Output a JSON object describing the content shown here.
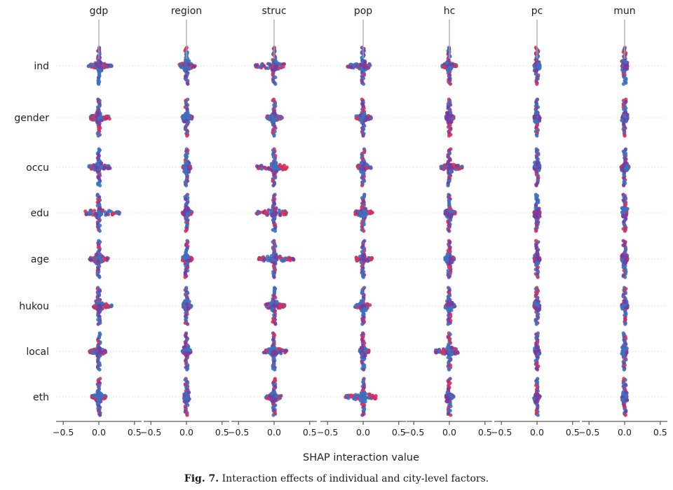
{
  "chart_data": {
    "type": "scatter",
    "subtype": "shap-interaction-summary",
    "columns": [
      "gdp",
      "region",
      "struc",
      "pop",
      "hc",
      "pc",
      "mun"
    ],
    "rows": [
      "ind",
      "gender",
      "occu",
      "edu",
      "age",
      "hukou",
      "local",
      "eth"
    ],
    "xlabel": "SHAP interaction value",
    "xlim": [
      -0.6,
      0.6
    ],
    "xticks": [
      -0.5,
      0.0,
      0.5
    ],
    "xtick_labels": [
      "−0.5",
      "0.0",
      "0.5"
    ],
    "color_low": "#3a72c0",
    "color_high": "#d7315a",
    "color_mid": "#7b3aa0",
    "grid": false,
    "spread": {
      "note": "approximate horizontal extent of interaction values per cell, [min, max]",
      "gdp": {
        "ind": [
          -0.15,
          0.18
        ],
        "gender": [
          -0.12,
          0.16
        ],
        "occu": [
          -0.14,
          0.16
        ],
        "edu": [
          -0.2,
          0.3
        ],
        "age": [
          -0.13,
          0.14
        ],
        "hukou": [
          -0.08,
          0.18
        ],
        "local": [
          -0.13,
          0.1
        ],
        "eth": [
          -0.1,
          0.1
        ]
      },
      "region": {
        "ind": [
          -0.1,
          0.12
        ],
        "gender": [
          -0.06,
          0.08
        ],
        "occu": [
          -0.05,
          0.06
        ],
        "edu": [
          -0.06,
          0.08
        ],
        "age": [
          -0.06,
          0.08
        ],
        "hukou": [
          -0.05,
          0.07
        ],
        "local": [
          -0.06,
          0.06
        ],
        "eth": [
          -0.03,
          0.03
        ]
      },
      "struc": {
        "ind": [
          -0.27,
          0.18
        ],
        "gender": [
          -0.1,
          0.12
        ],
        "occu": [
          -0.25,
          0.18
        ],
        "edu": [
          -0.25,
          0.18
        ],
        "age": [
          -0.22,
          0.28
        ],
        "hukou": [
          -0.12,
          0.15
        ],
        "local": [
          -0.15,
          0.18
        ],
        "eth": [
          -0.12,
          0.1
        ]
      },
      "pop": {
        "ind": [
          -0.22,
          0.1
        ],
        "gender": [
          -0.1,
          0.12
        ],
        "occu": [
          -0.08,
          0.12
        ],
        "edu": [
          -0.12,
          0.14
        ],
        "age": [
          -0.1,
          0.13
        ],
        "hukou": [
          -0.12,
          0.1
        ],
        "local": [
          -0.05,
          0.08
        ],
        "eth": [
          -0.25,
          0.2
        ]
      },
      "hc": {
        "ind": [
          -0.1,
          0.1
        ],
        "gender": [
          -0.05,
          0.06
        ],
        "occu": [
          -0.12,
          0.18
        ],
        "edu": [
          -0.06,
          0.08
        ],
        "age": [
          -0.06,
          0.07
        ],
        "hukou": [
          -0.06,
          0.08
        ],
        "local": [
          -0.22,
          0.12
        ],
        "eth": [
          -0.05,
          0.06
        ]
      },
      "pc": {
        "ind": [
          -0.04,
          0.04
        ],
        "gender": [
          -0.03,
          0.03
        ],
        "occu": [
          -0.04,
          0.04
        ],
        "edu": [
          -0.04,
          0.04
        ],
        "age": [
          -0.04,
          0.04
        ],
        "hukou": [
          -0.04,
          0.04
        ],
        "local": [
          -0.03,
          0.03
        ],
        "eth": [
          -0.03,
          0.03
        ]
      },
      "mun": {
        "ind": [
          -0.04,
          0.04
        ],
        "gender": [
          -0.03,
          0.04
        ],
        "occu": [
          -0.05,
          0.06
        ],
        "edu": [
          -0.03,
          0.03
        ],
        "age": [
          -0.04,
          0.04
        ],
        "hukou": [
          -0.04,
          0.04
        ],
        "local": [
          -0.03,
          0.03
        ],
        "eth": [
          -0.03,
          0.03
        ]
      }
    }
  },
  "caption": {
    "label": "Fig. 7.",
    "text": "Interaction effects of individual and city-level factors."
  }
}
